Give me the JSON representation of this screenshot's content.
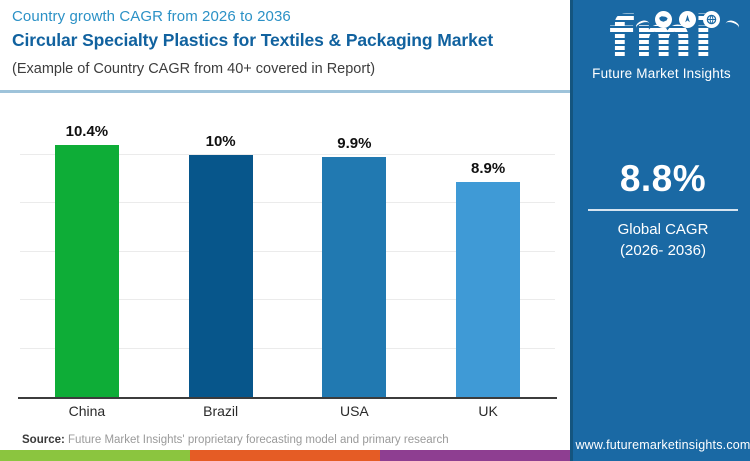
{
  "header": {
    "subtitle": "Country growth CAGR from 2026 to 2036",
    "title": "Circular Specialty Plastics for Textiles & Packaging Market",
    "note": "(Example of Country CAGR from 40+ covered in Report)"
  },
  "chart_data": {
    "type": "bar",
    "categories": [
      "China",
      "Brazil",
      "USA",
      "UK"
    ],
    "values": [
      10.4,
      10,
      9.9,
      8.9
    ],
    "value_labels": [
      "10.4%",
      "10%",
      "9.9%",
      "8.9%"
    ],
    "bar_colors": [
      "#0ead37",
      "#07568b",
      "#2179b1",
      "#3f9ad6"
    ],
    "title": "Country growth CAGR from 2026 to 2036",
    "xlabel": "",
    "ylabel": "",
    "ylim": [
      0,
      12.4
    ],
    "gridline_values": [
      2,
      4,
      6,
      8,
      10
    ],
    "grid": "horizontal-only",
    "legend": "none"
  },
  "source": {
    "label": "Source:",
    "text": " Future Market Insights' proprietary forecasting model and primary research"
  },
  "sidebar": {
    "logo_text": "fmi",
    "logo_caption": "Future Market Insights",
    "global_cagr_value": "8.8%",
    "global_cagr_line1": "Global CAGR",
    "global_cagr_line2": "(2026- 2036)",
    "website": "www.futuremarketinsights.com",
    "bg_color": "#1a69a4"
  },
  "footer_stripe_colors": [
    "#8bc53f",
    "#e55c25",
    "#8e3e91"
  ]
}
